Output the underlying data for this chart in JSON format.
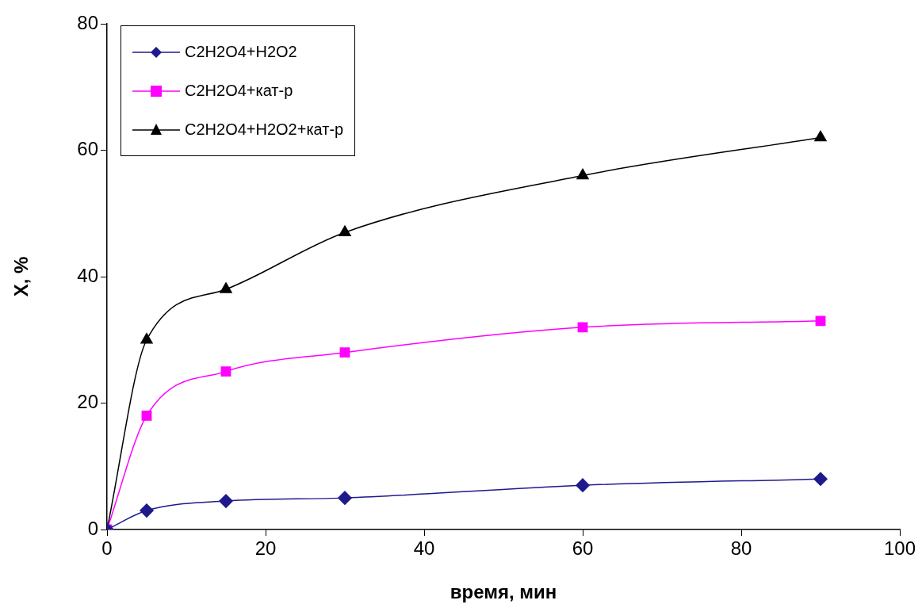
{
  "chart_data": {
    "type": "line",
    "xlabel": "время, мин",
    "ylabel": "X, %",
    "x": [
      0,
      5,
      15,
      30,
      60,
      90
    ],
    "series": [
      {
        "name": "C2H2O4+H2O2",
        "color": "#1f1a8c",
        "marker": "diamond",
        "values": [
          0,
          3,
          4.5,
          5,
          7,
          8
        ]
      },
      {
        "name": "C2H2O4+кат-р",
        "color": "#ff00ff",
        "marker": "square",
        "values": [
          0,
          18,
          25,
          28,
          32,
          33
        ]
      },
      {
        "name": "C2H2O4+H2O2+кат-р",
        "color": "#000000",
        "marker": "triangle",
        "values": [
          0,
          30,
          38,
          47,
          56,
          62
        ]
      }
    ],
    "xlim": [
      0,
      100
    ],
    "xticks": [
      0,
      20,
      40,
      60,
      80,
      100
    ],
    "ylim": [
      0,
      80
    ],
    "yticks": [
      0,
      20,
      40,
      60,
      80
    ],
    "grid": false,
    "legend": "top left"
  }
}
